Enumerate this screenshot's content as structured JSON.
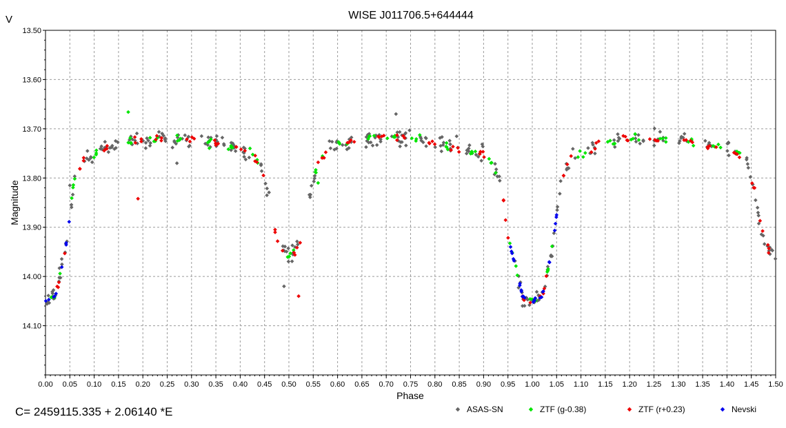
{
  "chart_data": {
    "type": "scatter",
    "title": "WISE J011706.5+644444",
    "xlabel": "Phase",
    "ylabel": "Magnitude",
    "corner_label": "V",
    "ephemeris": "C= 2459115.335 + 2.06140 *E",
    "xlim": [
      0.0,
      1.5
    ],
    "ylim": [
      14.2,
      13.5
    ],
    "y_inverted": true,
    "grid": true,
    "legend_position": "bottom",
    "x_ticks": [
      "0.00",
      "0.05",
      "0.10",
      "0.15",
      "0.20",
      "0.25",
      "0.30",
      "0.35",
      "0.40",
      "0.45",
      "0.50",
      "0.55",
      "0.60",
      "0.65",
      "0.70",
      "0.75",
      "0.80",
      "0.85",
      "0.90",
      "0.95",
      "1.00",
      "1.05",
      "1.10",
      "1.15",
      "1.20",
      "1.25",
      "1.30",
      "1.35",
      "1.40",
      "1.45",
      "1.50"
    ],
    "y_ticks": [
      "13.50",
      "13.60",
      "13.70",
      "13.80",
      "13.90",
      "14.00",
      "14.10"
    ],
    "light_curve": {
      "phase": [
        0.0,
        0.02,
        0.04,
        0.06,
        0.08,
        0.1,
        0.15,
        0.2,
        0.25,
        0.3,
        0.35,
        0.4,
        0.42,
        0.44,
        0.46,
        0.47,
        0.48,
        0.5,
        0.52,
        0.53,
        0.54,
        0.56,
        0.58,
        0.6,
        0.65,
        0.7,
        0.75,
        0.8,
        0.85,
        0.9,
        0.92,
        0.94,
        0.95,
        0.96,
        0.97,
        0.98,
        1.0
      ],
      "magnitude": [
        14.05,
        14.04,
        13.95,
        13.8,
        13.76,
        13.75,
        13.73,
        13.72,
        13.72,
        13.72,
        13.73,
        13.74,
        13.75,
        13.77,
        13.84,
        13.9,
        13.94,
        13.96,
        13.94,
        13.9,
        13.84,
        13.77,
        13.74,
        13.73,
        13.72,
        13.72,
        13.72,
        13.73,
        13.74,
        13.75,
        13.77,
        13.84,
        13.92,
        13.96,
        14.0,
        14.04,
        14.05
      ]
    },
    "series": [
      {
        "name": "ASAS-SN",
        "color": "#666666",
        "scatter": 0.025,
        "outlier_offsets": [
          -0.06,
          0.05,
          0.07,
          -0.05
        ],
        "sample_phases": [
          0.0,
          0.01,
          0.03,
          0.05,
          0.09,
          0.12,
          0.14,
          0.18,
          0.21,
          0.24,
          0.27,
          0.29,
          0.33,
          0.36,
          0.39,
          0.41,
          0.45,
          0.49,
          0.51,
          0.55,
          0.59,
          0.62,
          0.66,
          0.68,
          0.72,
          0.74,
          0.78,
          0.81,
          0.84,
          0.87,
          0.89,
          0.93,
          0.97,
          0.99,
          1.01,
          1.03,
          1.05,
          1.08,
          1.12,
          1.17,
          1.22,
          1.26,
          1.31,
          1.36,
          1.41,
          1.45,
          1.47,
          1.49
        ]
      },
      {
        "name": "ZTF (g-0.38)",
        "color": "#00e600",
        "scatter": 0.015,
        "outlier_offsets": [
          -0.06,
          0.04
        ],
        "sample_phases": [
          0.02,
          0.05,
          0.1,
          0.17,
          0.22,
          0.28,
          0.33,
          0.38,
          0.43,
          0.5,
          0.56,
          0.61,
          0.67,
          0.71,
          0.76,
          0.82,
          0.88,
          0.92,
          0.96,
          1.0,
          1.04,
          1.1,
          1.16,
          1.21,
          1.27,
          1.33,
          1.38,
          1.43
        ]
      },
      {
        "name": "ZTF (r+0.23)",
        "color": "#ee0000",
        "scatter": 0.012,
        "outlier_offsets": [
          0.12,
          0.1
        ],
        "sample_phases": [
          0.03,
          0.07,
          0.12,
          0.19,
          0.23,
          0.3,
          0.35,
          0.4,
          0.44,
          0.48,
          0.52,
          0.57,
          0.63,
          0.69,
          0.73,
          0.79,
          0.84,
          0.9,
          0.95,
          0.99,
          1.02,
          1.07,
          1.13,
          1.19,
          1.25,
          1.32,
          1.37,
          1.42,
          1.46,
          1.48
        ]
      },
      {
        "name": "Nevski",
        "color": "#0000ee",
        "scatter": 0.006,
        "outlier_offsets": [],
        "sample_phases": [
          0.005,
          0.015,
          0.025,
          0.035,
          0.045,
          0.955,
          0.96,
          0.965,
          0.97,
          0.975,
          0.985,
          0.995,
          1.005,
          1.015,
          1.025,
          1.035,
          1.045,
          1.05
        ]
      }
    ]
  }
}
